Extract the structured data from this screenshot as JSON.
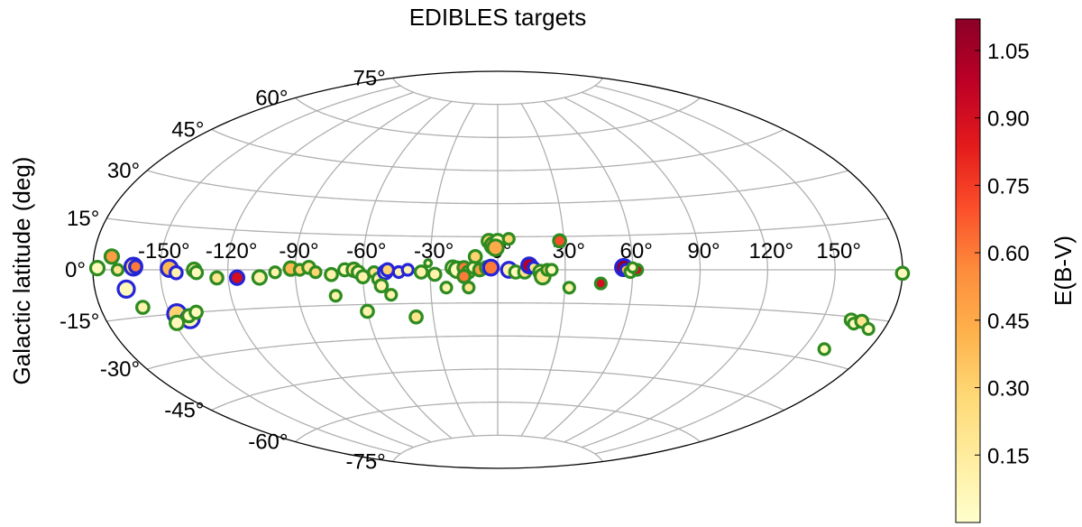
{
  "chart_data": {
    "type": "scatter",
    "projection": "aitoff",
    "title": "EDIBLES targets",
    "xlabel": "",
    "ylabel": "Galactic latitude (deg)",
    "x_ticks": [
      -150,
      -120,
      -90,
      -60,
      -30,
      0,
      30,
      60,
      90,
      120,
      150
    ],
    "x_tick_labels": [
      "-150°",
      "-120°",
      "-90°",
      "-60°",
      "-30°",
      "0°",
      "30°",
      "60°",
      "90°",
      "120°",
      "150°"
    ],
    "y_ticks": [
      -75,
      -60,
      -45,
      -30,
      -15,
      0,
      15,
      30,
      45,
      60,
      75
    ],
    "y_tick_labels": [
      "-75°",
      "-60°",
      "-45°",
      "-30°",
      "-15°",
      "0°",
      "15°",
      "30°",
      "45°",
      "60°",
      "75°"
    ],
    "xlim": [
      -180,
      180
    ],
    "ylim": [
      -90,
      90
    ],
    "grid": true,
    "colorbar": {
      "label": "E(B-V)",
      "range": [
        0.0,
        1.12
      ],
      "ticks": [
        0.15,
        0.3,
        0.45,
        0.6,
        0.75,
        0.9,
        1.05
      ],
      "tick_labels": [
        "0.15",
        "0.30",
        "0.45",
        "0.60",
        "0.75",
        "0.90",
        "1.05"
      ],
      "colormap": "YlOrRd",
      "stops": [
        "#ffffcc",
        "#ffeda0",
        "#fed976",
        "#feb24c",
        "#fd8d3c",
        "#fc4e2a",
        "#e31a1c",
        "#bd0026",
        "#8b0027"
      ]
    },
    "ring_colors": {
      "green": "#2e8b20",
      "blue": "#2424d8"
    },
    "points": [
      {
        "l": -178,
        "b": 0.5,
        "ebv": 0.05,
        "ring": "green",
        "size": 1.0
      },
      {
        "l": -172,
        "b": 4,
        "ebv": 0.5,
        "ring": "green",
        "size": 1.0
      },
      {
        "l": -169,
        "b": 0,
        "ebv": 0.2,
        "ring": "green",
        "size": 0.8
      },
      {
        "l": -162,
        "b": 1,
        "ebv": 0.3,
        "ring": "blue",
        "size": 1.25
      },
      {
        "l": -161,
        "b": 1,
        "ebv": 0.6,
        "ring": "blue",
        "size": 0.9
      },
      {
        "l": -166,
        "b": -6,
        "ebv": 0.05,
        "ring": "blue",
        "size": 1.2
      },
      {
        "l": -161,
        "b": -12,
        "ebv": 0.1,
        "ring": "green",
        "size": 0.9
      },
      {
        "l": -147,
        "b": -15,
        "ebv": 0.3,
        "ring": "blue",
        "size": 1.35
      },
      {
        "l": -142,
        "b": -17,
        "ebv": 0.05,
        "ring": "blue",
        "size": 1.35
      },
      {
        "l": -149,
        "b": -18,
        "ebv": 0.05,
        "ring": "green",
        "size": 1.0
      },
      {
        "l": -142,
        "b": -16,
        "ebv": 0.05,
        "ring": "green",
        "size": 0.9
      },
      {
        "l": -138,
        "b": -15,
        "ebv": 0.05,
        "ring": "green",
        "size": 0.9
      },
      {
        "l": -146,
        "b": 0.5,
        "ebv": 0.4,
        "ring": "blue",
        "size": 1.2
      },
      {
        "l": -143,
        "b": -1,
        "ebv": 0.1,
        "ring": "blue",
        "size": 0.9
      },
      {
        "l": -135,
        "b": 0,
        "ebv": 0.1,
        "ring": "green",
        "size": 1.0
      },
      {
        "l": -134,
        "b": -1,
        "ebv": 0.05,
        "ring": "green",
        "size": 0.9
      },
      {
        "l": -125,
        "b": -3,
        "ebv": 0.2,
        "ring": "green",
        "size": 0.9
      },
      {
        "l": -116,
        "b": -3,
        "ebv": 0.9,
        "ring": "blue",
        "size": 1.0
      },
      {
        "l": -106,
        "b": -3,
        "ebv": 0.1,
        "ring": "green",
        "size": 1.0
      },
      {
        "l": -99,
        "b": -1,
        "ebv": 0.1,
        "ring": "green",
        "size": 0.8
      },
      {
        "l": -92,
        "b": 0.5,
        "ebv": 0.4,
        "ring": "green",
        "size": 1.0
      },
      {
        "l": -88,
        "b": 0,
        "ebv": 0.3,
        "ring": "green",
        "size": 0.8
      },
      {
        "l": -84,
        "b": 1,
        "ebv": 0.2,
        "ring": "green",
        "size": 0.9
      },
      {
        "l": -81,
        "b": -1,
        "ebv": 0.3,
        "ring": "green",
        "size": 0.8
      },
      {
        "l": -74,
        "b": -2,
        "ebv": 0.1,
        "ring": "green",
        "size": 0.9
      },
      {
        "l": -73,
        "b": -11,
        "ebv": 0.1,
        "ring": "green",
        "size": 0.8
      },
      {
        "l": -68,
        "b": 0,
        "ebv": 0.05,
        "ring": "green",
        "size": 0.9
      },
      {
        "l": -64,
        "b": 0,
        "ebv": 0.2,
        "ring": "green",
        "size": 1.0
      },
      {
        "l": -62,
        "b": -1,
        "ebv": 0.05,
        "ring": "green",
        "size": 0.9
      },
      {
        "l": -60,
        "b": -3,
        "ebv": 0.1,
        "ring": "green",
        "size": 0.9
      },
      {
        "l": -55,
        "b": -1,
        "ebv": 0.2,
        "ring": "green",
        "size": 0.8
      },
      {
        "l": -53,
        "b": -4,
        "ebv": 0.1,
        "ring": "green",
        "size": 0.9
      },
      {
        "l": -50,
        "b": -1,
        "ebv": 0.1,
        "ring": "blue",
        "size": 1.0
      },
      {
        "l": -49,
        "b": 0,
        "ebv": 0.3,
        "ring": "blue",
        "size": 0.9
      },
      {
        "l": -44,
        "b": -1,
        "ebv": 0.1,
        "ring": "blue",
        "size": 0.8
      },
      {
        "l": -52,
        "b": -7,
        "ebv": 0.1,
        "ring": "green",
        "size": 0.9
      },
      {
        "l": -48,
        "b": -11,
        "ebv": 0.1,
        "ring": "green",
        "size": 0.8
      },
      {
        "l": -60,
        "b": -18,
        "ebv": 0.1,
        "ring": "green",
        "size": 0.9
      },
      {
        "l": -38,
        "b": -21,
        "ebv": 0.2,
        "ring": "green",
        "size": 0.9
      },
      {
        "l": -40,
        "b": 0,
        "ebv": 0.1,
        "ring": "blue",
        "size": 0.8
      },
      {
        "l": -34,
        "b": -1,
        "ebv": 0.1,
        "ring": "green",
        "size": 0.9
      },
      {
        "l": -28,
        "b": -2,
        "ebv": 0.1,
        "ring": "green",
        "size": 0.9
      },
      {
        "l": -31,
        "b": 3,
        "ebv": 0.05,
        "ring": "green",
        "size": 0.5
      },
      {
        "l": -20,
        "b": 1,
        "ebv": 0.05,
        "ring": "green",
        "size": 1.0
      },
      {
        "l": -18,
        "b": 0,
        "ebv": 0.05,
        "ring": "green",
        "size": 1.15
      },
      {
        "l": -15,
        "b": 1,
        "ebv": 0.6,
        "ring": "green",
        "size": 0.9
      },
      {
        "l": -13,
        "b": -1,
        "ebv": 0.3,
        "ring": "green",
        "size": 0.9
      },
      {
        "l": -15,
        "b": -3,
        "ebv": 0.6,
        "ring": "green",
        "size": 0.9
      },
      {
        "l": -10,
        "b": 6,
        "ebv": 0.3,
        "ring": "green",
        "size": 0.9
      },
      {
        "l": -11,
        "b": 1,
        "ebv": 0.05,
        "ring": "green",
        "size": 0.8
      },
      {
        "l": -8,
        "b": 0,
        "ebv": 0.5,
        "ring": "green",
        "size": 0.9
      },
      {
        "l": -5,
        "b": 1,
        "ebv": 0.1,
        "ring": "green",
        "size": 0.9
      },
      {
        "l": -4,
        "b": 13,
        "ebv": 0.3,
        "ring": "green",
        "size": 1.0
      },
      {
        "l": -2,
        "b": 11,
        "ebv": 0.5,
        "ring": "green",
        "size": 1.2
      },
      {
        "l": 0,
        "b": 13,
        "ebv": 0.05,
        "ring": "green",
        "size": 1.0
      },
      {
        "l": -1,
        "b": 10,
        "ebv": 0.45,
        "ring": "green",
        "size": 1.15
      },
      {
        "l": -3,
        "b": 1,
        "ebv": 0.6,
        "ring": "blue",
        "size": 1.1
      },
      {
        "l": -23,
        "b": -8,
        "ebv": 0.1,
        "ring": "green",
        "size": 0.8
      },
      {
        "l": -13,
        "b": -8,
        "ebv": 0.2,
        "ring": "green",
        "size": 0.8
      },
      {
        "l": 5,
        "b": 14,
        "ebv": 0.3,
        "ring": "green",
        "size": 0.8
      },
      {
        "l": 5,
        "b": 0,
        "ebv": 0.1,
        "ring": "blue",
        "size": 1.1
      },
      {
        "l": 8,
        "b": -1,
        "ebv": 0.05,
        "ring": "green",
        "size": 0.9
      },
      {
        "l": 12,
        "b": -1,
        "ebv": 0.2,
        "ring": "green",
        "size": 0.9
      },
      {
        "l": 14,
        "b": 2,
        "ebv": 1.0,
        "ring": "blue",
        "size": 1.1
      },
      {
        "l": 16,
        "b": 1,
        "ebv": 0.2,
        "ring": "blue",
        "size": 0.8
      },
      {
        "l": 19,
        "b": -1,
        "ebv": 0.1,
        "ring": "green",
        "size": 1.0
      },
      {
        "l": 20,
        "b": -3,
        "ebv": 0.2,
        "ring": "green",
        "size": 1.1
      },
      {
        "l": 22,
        "b": 0,
        "ebv": 0.3,
        "ring": "green",
        "size": 0.8
      },
      {
        "l": 24,
        "b": 0,
        "ebv": 0.05,
        "ring": "green",
        "size": 0.8
      },
      {
        "l": 28,
        "b": 13,
        "ebv": 0.7,
        "ring": "green",
        "size": 0.9
      },
      {
        "l": 32,
        "b": -8,
        "ebv": 0.1,
        "ring": "green",
        "size": 0.8
      },
      {
        "l": 46,
        "b": -6,
        "ebv": 0.9,
        "ring": "green",
        "size": 0.8
      },
      {
        "l": 56,
        "b": 1,
        "ebv": 1.1,
        "ring": "blue",
        "size": 1.2
      },
      {
        "l": 57,
        "b": 0,
        "ebv": 0.4,
        "ring": "blue",
        "size": 0.8
      },
      {
        "l": 59,
        "b": -1,
        "ebv": 0.05,
        "ring": "green",
        "size": 0.8
      },
      {
        "l": 62,
        "b": 0,
        "ebv": 0.9,
        "ring": "green",
        "size": 0.8
      },
      {
        "l": 60,
        "b": 1,
        "ebv": 0.05,
        "ring": "green",
        "size": 0.7
      },
      {
        "l": 180,
        "b": -1,
        "ebv": 0.05,
        "ring": "green",
        "size": 0.9
      },
      {
        "l": 163,
        "b": -16,
        "ebv": 0.05,
        "ring": "green",
        "size": 0.9
      },
      {
        "l": 165,
        "b": -17,
        "ebv": 0.05,
        "ring": "green",
        "size": 0.8
      },
      {
        "l": 168,
        "b": -16,
        "ebv": 0.2,
        "ring": "green",
        "size": 0.9
      },
      {
        "l": 173,
        "b": -18,
        "ebv": 0.05,
        "ring": "green",
        "size": 0.8
      },
      {
        "l": 160,
        "b": -26,
        "ebv": 0.05,
        "ring": "green",
        "size": 0.8
      }
    ]
  }
}
